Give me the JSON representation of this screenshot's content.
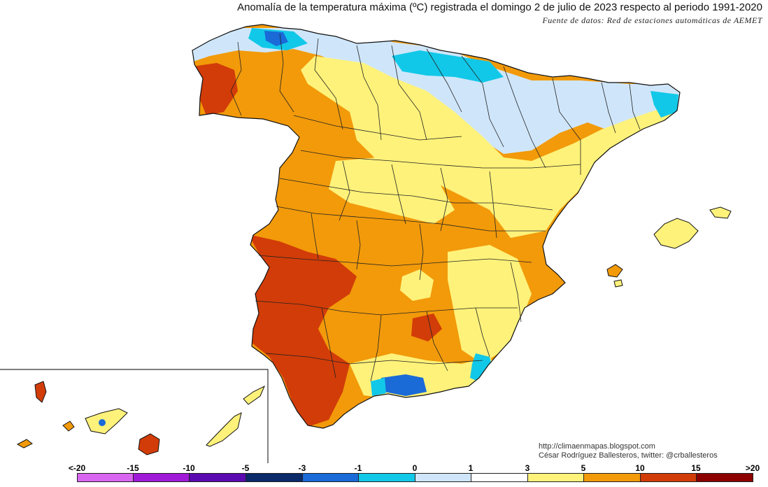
{
  "header": {
    "title": "Anomalía de la temperatura máxima (ºC) registrada el domingo 2 de julio de 2023 respecto al periodo 1991-2020",
    "source": "Fuente de datos: Red de estaciones automáticas de AEMET"
  },
  "credits": {
    "blog": "http://climaenmapas.blogspot.com",
    "author": "César Rodríguez Ballesteros, twitter: @crballesteros"
  },
  "legend": {
    "labels": [
      "<-20",
      "-15",
      "-10",
      "-5",
      "-3",
      "-1",
      "0",
      "1",
      "3",
      "5",
      "10",
      "15",
      ">20"
    ],
    "colors": [
      "#d966f0",
      "#a01ad8",
      "#5a0ab0",
      "#0a2a6a",
      "#1a6ad8",
      "#12c8e8",
      "#cfe6fa",
      "#ffffff",
      "#fff27a",
      "#f29a0a",
      "#d23c08",
      "#8c0000",
      "#6a3a00"
    ]
  },
  "colors": {
    "very_warm": "#d23c08",
    "warm": "#f29a0a",
    "mild": "#fff27a",
    "neutral": "#ffffff",
    "cool": "#cfe6fa",
    "cold": "#12c8e8",
    "very_cold": "#1a6ad8"
  }
}
